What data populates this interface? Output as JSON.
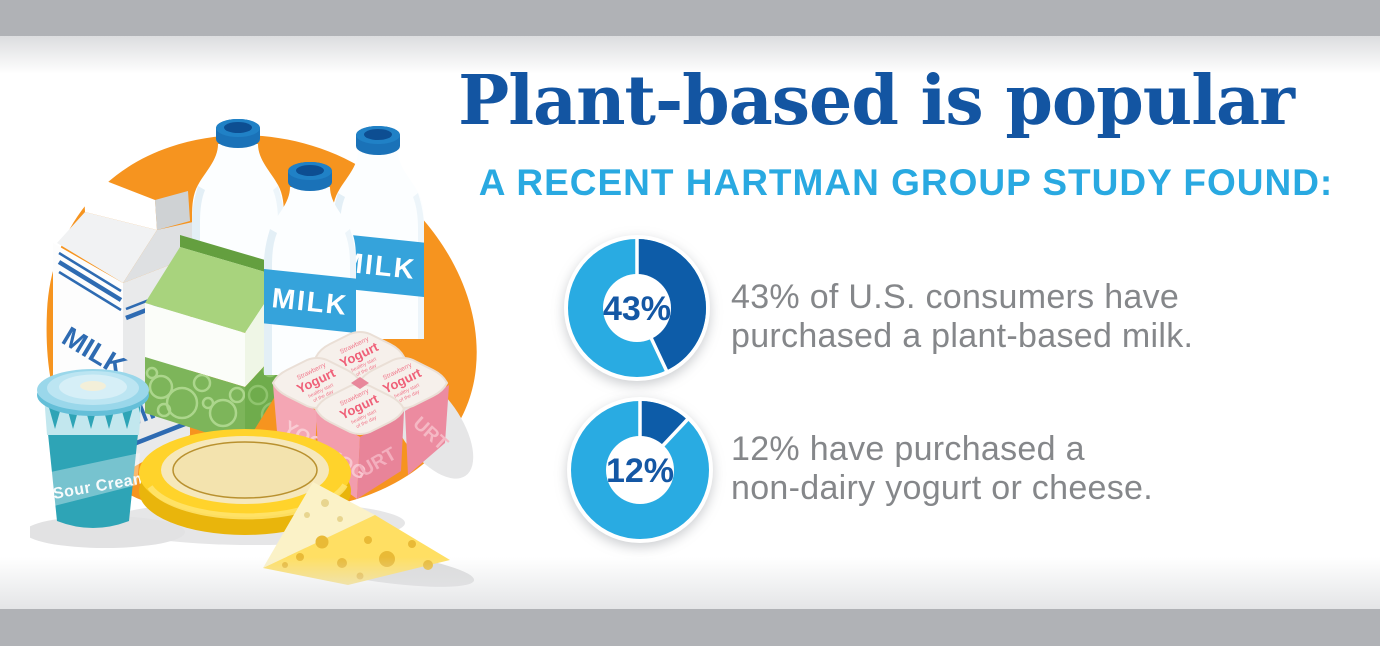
{
  "frame": {
    "top_bar_color": "#b0b2b6",
    "bottom_bar_color": "#b0b2b6",
    "canvas_color": "#ffffff"
  },
  "header": {
    "title": "Plant-based is popular",
    "subtitle": "A RECENT HARTMAN GROUP STUDY FOUND:",
    "title_color": "#1355a2",
    "subtitle_color": "#29a9e1"
  },
  "captions_color": "#85878a",
  "chart_data": [
    {
      "type": "pie",
      "style": "donut",
      "label": "43%",
      "percent": 43,
      "start": "top",
      "direction": "clockwise",
      "slices": [
        {
          "name": "have purchased plant-based milk",
          "value": 43,
          "color": "#0d5ca8"
        },
        {
          "name": "have not",
          "value": 57,
          "color": "#29abe2"
        }
      ],
      "center_label_color": "#1457a4",
      "caption_lines": [
        "43% of U.S. consumers have",
        "purchased a plant-based milk."
      ]
    },
    {
      "type": "pie",
      "style": "donut",
      "label": "12%",
      "percent": 12,
      "start": "top",
      "direction": "clockwise",
      "slices": [
        {
          "name": "have purchased non-dairy yogurt or cheese",
          "value": 12,
          "color": "#0d5ca8"
        },
        {
          "name": "have not",
          "value": 88,
          "color": "#29abe2"
        }
      ],
      "center_label_color": "#1457a4",
      "caption_lines": [
        "12% have purchased a",
        "non-dairy yogurt or cheese."
      ]
    }
  ],
  "illustration": {
    "background_blob_color": "#f6941f",
    "milk_carton_label": "MILK",
    "bottle_label": "MILK",
    "sour_cream_label": "Sour Cream",
    "yogurt_top_flavor": "Strawberry",
    "yogurt_top_label": "Yogurt",
    "yogurt_top_tagline_1": "healthy start",
    "yogurt_top_tagline_2": "of the day",
    "yogurt_side_left": "YOG",
    "yogurt_side_right": "URT"
  }
}
